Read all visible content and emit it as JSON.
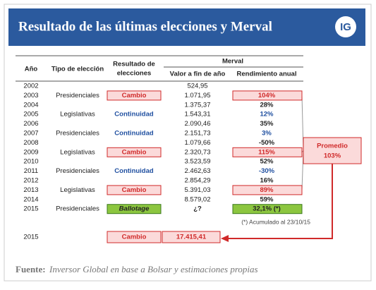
{
  "header": {
    "title": "Resultado de las últimas elecciones y Merval",
    "logo": "IG"
  },
  "table": {
    "columns": {
      "year": "Año",
      "type": "Tipo de elección",
      "result": [
        "Resultado de",
        "elecciones"
      ],
      "merval": "Merval",
      "value": "Valor a fin de año",
      "return": "Rendimiento anual"
    },
    "rows": [
      {
        "year": "2002",
        "value": "524,95"
      },
      {
        "year": "2003",
        "type": "Presidenciales",
        "result": "Cambio",
        "value": "1.071,95",
        "return": "104%"
      },
      {
        "year": "2004",
        "value": "1.375,37",
        "return": "28%"
      },
      {
        "year": "2005",
        "type": "Legislativas",
        "result": "Continuidad",
        "value": "1.543,31",
        "return": "12%"
      },
      {
        "year": "2006",
        "value": "2.090,46",
        "return": "35%"
      },
      {
        "year": "2007",
        "type": "Presidenciales",
        "result": "Continuidad",
        "value": "2.151,73",
        "return": "3%"
      },
      {
        "year": "2008",
        "value": "1.079,66",
        "return": "-50%"
      },
      {
        "year": "2009",
        "type": "Legislativas",
        "result": "Cambio",
        "value": "2.320,73",
        "return": "115%"
      },
      {
        "year": "2010",
        "value": "3.523,59",
        "return": "52%"
      },
      {
        "year": "2011",
        "type": "Presidenciales",
        "result": "Continuidad",
        "value": "2.462,63",
        "return": "-30%"
      },
      {
        "year": "2012",
        "value": "2.854,29",
        "return": "16%"
      },
      {
        "year": "2013",
        "type": "Legislativas",
        "result": "Cambio",
        "value": "5.391,03",
        "return": "89%"
      },
      {
        "year": "2014",
        "value": "8.579,02",
        "return": "59%"
      },
      {
        "year": "2015",
        "type": "Presidenciales",
        "result": "Ballotage",
        "value": "¿?",
        "return": "32,1% (*)"
      }
    ]
  },
  "average": {
    "label": "Promedio",
    "value": "103%"
  },
  "note": "(*) Acumulado al 23/10/15",
  "projection": {
    "year": "2015",
    "result": "Cambio",
    "value": "17.415,41"
  },
  "source": {
    "label": "Fuente:",
    "text": "Inversor Global en base a Bolsar y estimaciones propias"
  }
}
